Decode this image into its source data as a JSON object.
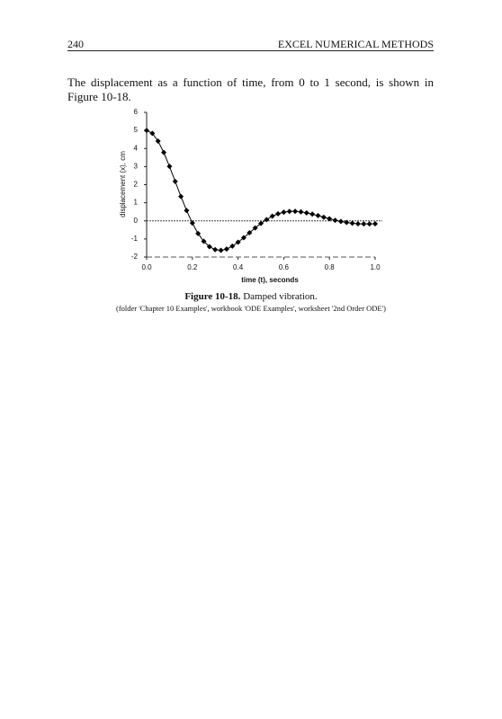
{
  "header": {
    "page_number": "240",
    "running_title": "EXCEL NUMERICAL METHODS"
  },
  "paragraph": "The displacement as a function of time, from 0 to 1 second, is shown in Figure 10-18.",
  "chart_data": {
    "type": "line",
    "x_label": "time (t), seconds",
    "y_label": "displacement (x), cm",
    "x": [
      0,
      0.025,
      0.05,
      0.075,
      0.1,
      0.125,
      0.15,
      0.175,
      0.2,
      0.225,
      0.25,
      0.275,
      0.3,
      0.325,
      0.35,
      0.375,
      0.4,
      0.425,
      0.45,
      0.475,
      0.5,
      0.525,
      0.55,
      0.575,
      0.6,
      0.625,
      0.65,
      0.675,
      0.7,
      0.725,
      0.75,
      0.775,
      0.8,
      0.825,
      0.85,
      0.875,
      0.9,
      0.925,
      0.95,
      0.975,
      1.0
    ],
    "values": [
      5,
      4.84,
      4.41,
      3.78,
      3.01,
      2.18,
      1.35,
      0.57,
      -0.12,
      -0.7,
      -1.13,
      -1.43,
      -1.59,
      -1.63,
      -1.56,
      -1.4,
      -1.18,
      -0.93,
      -0.66,
      -0.39,
      -0.14,
      0.07,
      0.26,
      0.39,
      0.48,
      0.52,
      0.53,
      0.5,
      0.44,
      0.37,
      0.29,
      0.2,
      0.12,
      0.03,
      -0.03,
      -0.09,
      -0.13,
      -0.16,
      -0.17,
      -0.17,
      -0.16
    ],
    "color": "#000000",
    "xlim": [
      0,
      1
    ],
    "xticks": [
      {
        "value": 0,
        "label": "0.0"
      },
      0.2,
      0.4,
      0.6,
      0.8,
      {
        "value": 1,
        "label": "1.0"
      }
    ],
    "ylim": [
      -2,
      6
    ],
    "yticks": [
      -2,
      -1,
      0,
      1,
      2,
      3,
      4,
      5,
      6
    ]
  },
  "caption": {
    "label": "Figure 10-18.",
    "text": "Damped vibration.",
    "source": "(folder 'Chapter 10 Examples', workbook 'ODE Examples', worksheet '2nd Order ODE')"
  }
}
